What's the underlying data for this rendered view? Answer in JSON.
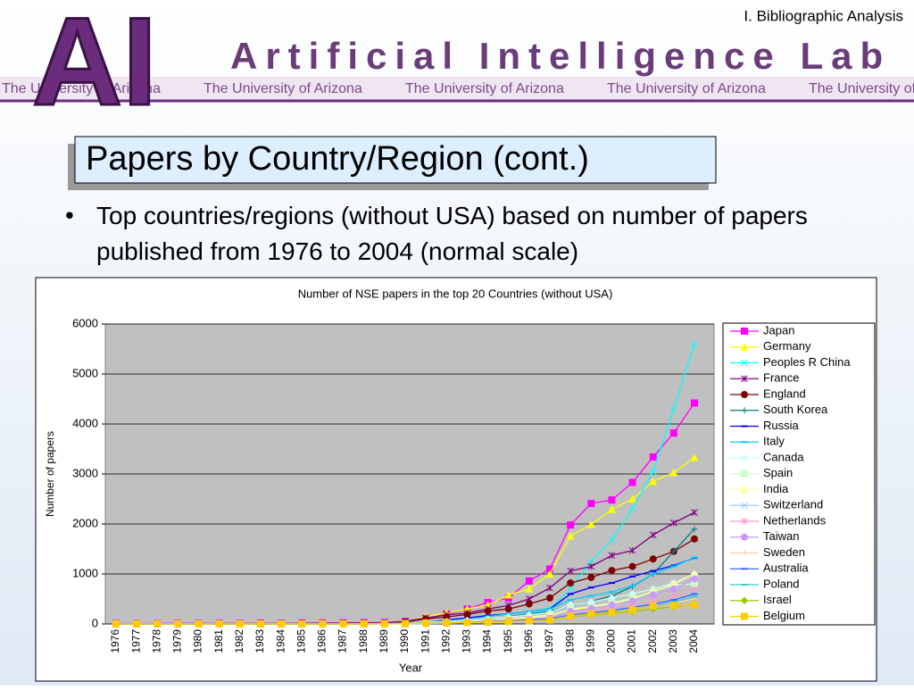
{
  "header": {
    "logo": "AI",
    "lab": "Artificial Intelligence Lab",
    "strip": "The University of Arizona",
    "section": "I. Bibliographic Analysis"
  },
  "slide": {
    "title": "Papers by Country/Region (cont.)",
    "bullet": "Top countries/regions (without USA) based on number of papers published from 1976 to 2004 (normal scale)"
  },
  "chart_data": {
    "type": "line",
    "title": "Number of NSE papers in the top 20 Countries (without USA)",
    "x_label": "Year",
    "y_label": "Number of papers",
    "categories": [
      "1976",
      "1977",
      "1978",
      "1979",
      "1980",
      "1981",
      "1982",
      "1983",
      "1984",
      "1985",
      "1986",
      "1987",
      "1988",
      "1989",
      "1990",
      "1991",
      "1992",
      "1993",
      "1994",
      "1995",
      "1996",
      "1997",
      "1998",
      "1999",
      "2000",
      "2001",
      "2002",
      "2003",
      "2004"
    ],
    "ylim": [
      0,
      6000
    ],
    "yticks": [
      0,
      1000,
      2000,
      3000,
      4000,
      5000,
      6000
    ],
    "grid": true,
    "plot_background": "#c0c0c0",
    "series": [
      {
        "name": "Japan",
        "color": "#ff00ff",
        "marker": "square",
        "values": [
          10,
          8,
          10,
          12,
          12,
          14,
          15,
          18,
          15,
          20,
          22,
          25,
          28,
          30,
          50,
          100,
          200,
          300,
          430,
          520,
          860,
          1100,
          1980,
          2410,
          2480,
          2830,
          3340,
          3820,
          4420
        ]
      },
      {
        "name": "Germany",
        "color": "#ffff00",
        "marker": "triangle",
        "values": [
          5,
          5,
          6,
          6,
          7,
          8,
          8,
          9,
          10,
          10,
          12,
          14,
          15,
          18,
          30,
          150,
          220,
          300,
          380,
          580,
          700,
          1000,
          1760,
          1990,
          2290,
          2500,
          2850,
          3030,
          3330
        ]
      },
      {
        "name": "Peoples R China",
        "color": "#00ffff",
        "marker": "x",
        "values": [
          0,
          0,
          0,
          0,
          0,
          0,
          0,
          0,
          0,
          0,
          0,
          0,
          2,
          3,
          5,
          10,
          30,
          50,
          80,
          150,
          200,
          300,
          700,
          1250,
          1680,
          2300,
          3050,
          4300,
          5600
        ]
      },
      {
        "name": "France",
        "color": "#800080",
        "marker": "star",
        "values": [
          3,
          3,
          4,
          4,
          5,
          5,
          6,
          6,
          8,
          8,
          10,
          12,
          14,
          18,
          50,
          120,
          180,
          220,
          300,
          370,
          500,
          720,
          1060,
          1150,
          1370,
          1470,
          1780,
          2020,
          2230
        ]
      },
      {
        "name": "England",
        "color": "#800000",
        "marker": "circle",
        "values": [
          3,
          3,
          3,
          4,
          4,
          5,
          5,
          6,
          7,
          8,
          10,
          12,
          14,
          16,
          40,
          100,
          140,
          190,
          260,
          300,
          400,
          520,
          820,
          930,
          1070,
          1150,
          1300,
          1450,
          1700
        ]
      },
      {
        "name": "South Korea",
        "color": "#008080",
        "marker": "plus",
        "values": [
          0,
          0,
          0,
          0,
          0,
          0,
          0,
          0,
          0,
          0,
          0,
          0,
          1,
          2,
          5,
          10,
          30,
          60,
          90,
          150,
          200,
          250,
          370,
          450,
          560,
          750,
          1000,
          1450,
          1900
        ]
      },
      {
        "name": "Russia",
        "color": "#0000ff",
        "marker": "dash",
        "values": [
          0,
          0,
          0,
          0,
          0,
          0,
          0,
          0,
          0,
          0,
          0,
          0,
          1,
          2,
          10,
          30,
          80,
          120,
          170,
          200,
          250,
          300,
          600,
          730,
          820,
          950,
          1060,
          1170,
          1320
        ]
      },
      {
        "name": "Italy",
        "color": "#00ccff",
        "marker": "dash",
        "values": [
          1,
          1,
          1,
          1,
          2,
          2,
          2,
          2,
          3,
          3,
          4,
          5,
          6,
          8,
          20,
          40,
          60,
          90,
          150,
          200,
          250,
          300,
          480,
          560,
          640,
          760,
          1000,
          1150,
          1330
        ]
      },
      {
        "name": "Canada",
        "color": "#ccffff",
        "marker": "diamond",
        "values": [
          0,
          0,
          0,
          0,
          0,
          0,
          0,
          0,
          0,
          0,
          1,
          1,
          2,
          3,
          15,
          30,
          50,
          70,
          100,
          140,
          180,
          230,
          380,
          440,
          520,
          600,
          700,
          820,
          1000
        ]
      },
      {
        "name": "Spain",
        "color": "#ccffcc",
        "marker": "square",
        "values": [
          0,
          0,
          0,
          0,
          0,
          0,
          0,
          0,
          0,
          0,
          1,
          1,
          2,
          3,
          5,
          15,
          25,
          40,
          60,
          90,
          120,
          160,
          300,
          350,
          420,
          520,
          650,
          780,
          800
        ]
      },
      {
        "name": "India",
        "color": "#ffff99",
        "marker": "triangle",
        "values": [
          0,
          0,
          0,
          0,
          0,
          0,
          0,
          0,
          0,
          0,
          1,
          1,
          2,
          3,
          10,
          20,
          35,
          50,
          70,
          100,
          140,
          180,
          280,
          340,
          400,
          500,
          650,
          800,
          1000
        ]
      },
      {
        "name": "Switzerland",
        "color": "#99ccff",
        "marker": "x",
        "values": [
          0,
          0,
          0,
          0,
          0,
          0,
          0,
          0,
          0,
          0,
          1,
          1,
          2,
          3,
          10,
          20,
          30,
          40,
          55,
          70,
          90,
          110,
          200,
          230,
          280,
          330,
          400,
          480,
          600
        ]
      },
      {
        "name": "Netherlands",
        "color": "#ff99cc",
        "marker": "star",
        "values": [
          0,
          0,
          0,
          0,
          0,
          0,
          0,
          0,
          0,
          0,
          1,
          1,
          2,
          3,
          10,
          20,
          30,
          45,
          60,
          80,
          100,
          130,
          220,
          260,
          310,
          370,
          450,
          560,
          700
        ]
      },
      {
        "name": "Taiwan",
        "color": "#cc99ff",
        "marker": "circle",
        "values": [
          0,
          0,
          0,
          0,
          0,
          0,
          0,
          0,
          0,
          0,
          1,
          1,
          2,
          3,
          3,
          8,
          15,
          25,
          40,
          60,
          80,
          110,
          250,
          310,
          380,
          460,
          580,
          700,
          900
        ]
      },
      {
        "name": "Sweden",
        "color": "#ffcc99",
        "marker": "plus",
        "values": [
          0,
          0,
          0,
          0,
          0,
          0,
          0,
          0,
          0,
          0,
          1,
          1,
          2,
          3,
          8,
          15,
          25,
          35,
          45,
          60,
          75,
          95,
          170,
          200,
          240,
          290,
          360,
          420,
          500
        ]
      },
      {
        "name": "Australia",
        "color": "#3366ff",
        "marker": "dash",
        "values": [
          0,
          0,
          0,
          0,
          0,
          0,
          0,
          0,
          0,
          0,
          1,
          1,
          2,
          3,
          5,
          12,
          20,
          30,
          45,
          60,
          80,
          100,
          180,
          220,
          270,
          330,
          400,
          480,
          600
        ]
      },
      {
        "name": "Poland",
        "color": "#33cccc",
        "marker": "dash",
        "values": [
          0,
          0,
          0,
          0,
          0,
          0,
          0,
          0,
          0,
          0,
          1,
          1,
          2,
          3,
          3,
          8,
          15,
          25,
          35,
          50,
          65,
          85,
          150,
          190,
          240,
          290,
          360,
          440,
          550
        ]
      },
      {
        "name": "Israel",
        "color": "#99cc00",
        "marker": "diamond",
        "values": [
          0,
          0,
          0,
          0,
          0,
          0,
          0,
          0,
          0,
          0,
          1,
          1,
          2,
          3,
          8,
          15,
          22,
          30,
          40,
          50,
          60,
          75,
          150,
          180,
          210,
          250,
          300,
          340,
          400
        ]
      },
      {
        "name": "Belgium",
        "color": "#ffcc00",
        "marker": "square",
        "values": [
          0,
          0,
          0,
          0,
          0,
          0,
          0,
          0,
          0,
          0,
          1,
          1,
          2,
          3,
          5,
          12,
          20,
          28,
          35,
          45,
          60,
          75,
          160,
          200,
          230,
          280,
          360,
          370,
          380
        ]
      }
    ]
  }
}
